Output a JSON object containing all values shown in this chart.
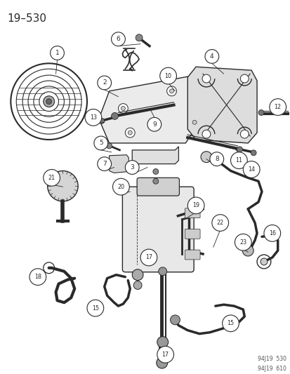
{
  "title": "19–530",
  "bg_color": "#ffffff",
  "line_color": "#2a2a2a",
  "watermark": [
    "94J19  530",
    "94J19  610"
  ]
}
